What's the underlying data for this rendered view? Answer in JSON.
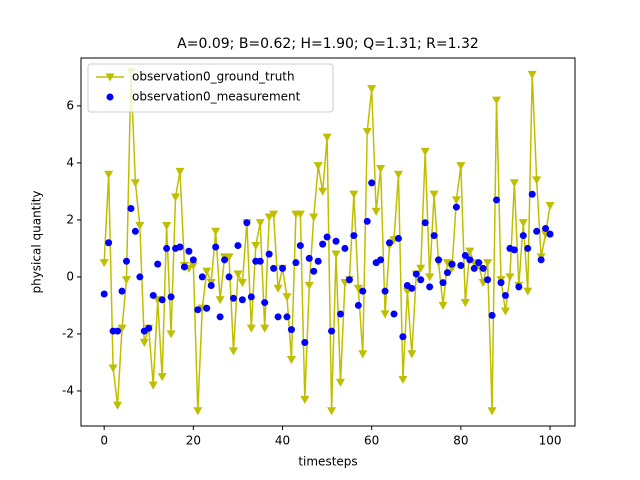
{
  "chart_data": {
    "type": "line",
    "title": "A=0.09; B=0.62; H=1.90; Q=1.31; R=1.32",
    "x_label": "timesteps",
    "y_label": "physical quantity",
    "x": [
      0,
      1,
      2,
      3,
      4,
      5,
      6,
      7,
      8,
      9,
      10,
      11,
      12,
      13,
      14,
      15,
      16,
      17,
      18,
      19,
      20,
      21,
      22,
      23,
      24,
      25,
      26,
      27,
      28,
      29,
      30,
      31,
      32,
      33,
      34,
      35,
      36,
      37,
      38,
      39,
      40,
      41,
      42,
      43,
      44,
      45,
      46,
      47,
      48,
      49,
      50,
      51,
      52,
      53,
      54,
      55,
      56,
      57,
      58,
      59,
      60,
      61,
      62,
      63,
      64,
      65,
      66,
      67,
      68,
      69,
      70,
      71,
      72,
      73,
      74,
      75,
      76,
      77,
      78,
      79,
      80,
      81,
      82,
      83,
      84,
      85,
      86,
      87,
      88,
      89,
      90,
      91,
      92,
      93,
      94,
      95,
      96,
      97,
      98,
      99,
      100
    ],
    "series": [
      {
        "name": "observation0_ground_truth",
        "color": "#bfbf00",
        "line": true,
        "marker": "triangle-down",
        "values": [
          0.5,
          3.6,
          -3.2,
          -4.5,
          -1.8,
          -0.1,
          7.2,
          3.3,
          1.8,
          -2.3,
          -1.8,
          -3.8,
          -0.8,
          -3.5,
          1.8,
          -2.0,
          2.8,
          3.7,
          0.4,
          0.3,
          0.4,
          -4.7,
          -1.1,
          0.2,
          -0.2,
          1.6,
          -0.8,
          0.7,
          0.7,
          -2.6,
          0.1,
          -0.2,
          1.9,
          -1.8,
          1.1,
          1.9,
          -1.8,
          2.1,
          2.2,
          -0.4,
          0.3,
          -0.7,
          -2.9,
          2.2,
          2.2,
          -4.3,
          -0.3,
          2.1,
          3.9,
          3.0,
          4.9,
          -4.7,
          0.8,
          -3.7,
          -0.2,
          -0.1,
          2.9,
          -0.4,
          -2.7,
          5.1,
          6.6,
          2.3,
          3.8,
          -1.3,
          1.1,
          1.3,
          3.6,
          -3.6,
          -0.5,
          -2.7,
          0.1,
          0.3,
          4.4,
          0,
          2.9,
          0.5,
          -1.0,
          0.5,
          0.3,
          2.7,
          3.9,
          -0.9,
          0.9,
          0.5,
          0.4,
          -0.2,
          0.5,
          -4.7,
          6.2,
          -0.1,
          -1.2,
          0.0,
          3.3,
          -0.3,
          1.9,
          -0.5,
          7.1,
          3.4,
          0.7,
          1.5,
          2.5
        ]
      },
      {
        "name": "observation0_measurement",
        "color": "#0000ff",
        "line": false,
        "marker": "circle",
        "values": [
          -0.6,
          1.2,
          -1.9,
          -1.9,
          -0.5,
          0.55,
          2.4,
          1.6,
          0,
          -1.9,
          -1.8,
          -0.65,
          0.45,
          -0.8,
          1.0,
          -0.7,
          1.0,
          1.05,
          0.35,
          0.9,
          0.6,
          -1.15,
          0.0,
          -1.1,
          -0.3,
          1.05,
          -1.4,
          0.6,
          0.0,
          -0.75,
          1.1,
          -0.8,
          1.9,
          -0.7,
          0.55,
          0.55,
          -0.9,
          0.8,
          0.3,
          -1.4,
          0.3,
          -1.4,
          -1.85,
          0.5,
          1.1,
          -2.3,
          0.65,
          0.2,
          0.55,
          1.15,
          1.4,
          -1.9,
          1.25,
          -1.3,
          1.0,
          -0.1,
          1.45,
          -1.0,
          -0.5,
          1.95,
          3.3,
          0.5,
          0.6,
          -0.5,
          1.2,
          -1.3,
          1.35,
          -2.1,
          -0.3,
          -0.4,
          0.1,
          -0.1,
          1.9,
          -0.35,
          1.45,
          0.6,
          -0.2,
          0.15,
          0.45,
          2.45,
          0.4,
          0.75,
          0.6,
          0.3,
          0.5,
          0.3,
          -0.1,
          -1.35,
          2.7,
          -0.2,
          -0.65,
          1.0,
          0.95,
          -0.35,
          1.45,
          1.0,
          2.9,
          1.6,
          0.6,
          1.7,
          1.5
        ]
      }
    ],
    "xlim": [
      -5.2,
      105.6
    ],
    "ylim": [
      -5.23,
      7.68
    ],
    "xticks": [
      0,
      20,
      40,
      60,
      80,
      100
    ],
    "yticks": [
      -4,
      -2,
      0,
      2,
      4,
      6
    ],
    "legend": "upper left"
  }
}
